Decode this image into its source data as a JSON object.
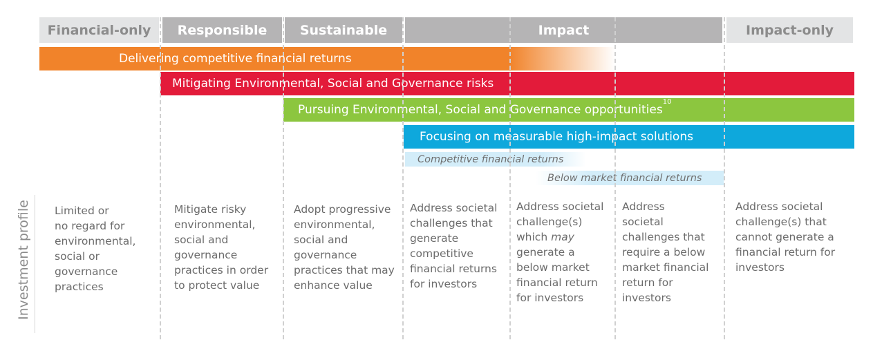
{
  "categories": {
    "financial_only": "Financial-only",
    "responsible": "Responsible",
    "sustainable": "Sustainable",
    "impact": "Impact",
    "impact_only": "Impact-only"
  },
  "bars": {
    "competitive_returns": "Delivering competitive financial returns",
    "mitigating_esg": "Mitigating Environmental, Social and Governance risks",
    "pursuing_esg": "Pursuing Environmental, Social and Governance opportunities",
    "pursuing_esg_footnote": "10",
    "measurable_impact": "Focusing on measurable high-impact solutions"
  },
  "returns": {
    "competitive": "Competitive financial returns",
    "below_market": "Below market financial returns"
  },
  "side_label": "Investment profile",
  "profiles": {
    "financial_only": [
      "Limited or",
      "no regard for",
      "environmental,",
      "social or",
      "governance",
      "practices"
    ],
    "responsible": [
      "Mitigate risky",
      "environmental,",
      "social and",
      "governance",
      "practices in order",
      "to protect value"
    ],
    "sustainable": [
      "Adopt progressive",
      "environmental,",
      "social and",
      "governance",
      "practices that may",
      "enhance value"
    ],
    "impact_1": [
      "Address societal",
      "challenges that",
      "generate",
      "competitive",
      "financial returns",
      "for investors"
    ],
    "impact_2_l1": "Address societal",
    "impact_2_l2": "challenge(s)",
    "impact_2_l3a": "which ",
    "impact_2_l3b": "may",
    "impact_2_rest": [
      "generate a",
      "below market",
      "financial return",
      "for investors"
    ],
    "impact_3": [
      "Address",
      "societal",
      "challenges that",
      "require a below",
      "market financial",
      "return for",
      "investors"
    ],
    "impact_only": [
      "Address societal",
      "challenge(s) that",
      "cannot generate a",
      "financial return for",
      "investors"
    ]
  },
  "colors": {
    "orange": "#f1832a",
    "red": "#e31b3a",
    "green": "#8cc63f",
    "blue": "#0ea8dc",
    "light_blue": "#d3edf9",
    "header_light": "#e3e4e5",
    "header_dark": "#b5b4b5"
  }
}
